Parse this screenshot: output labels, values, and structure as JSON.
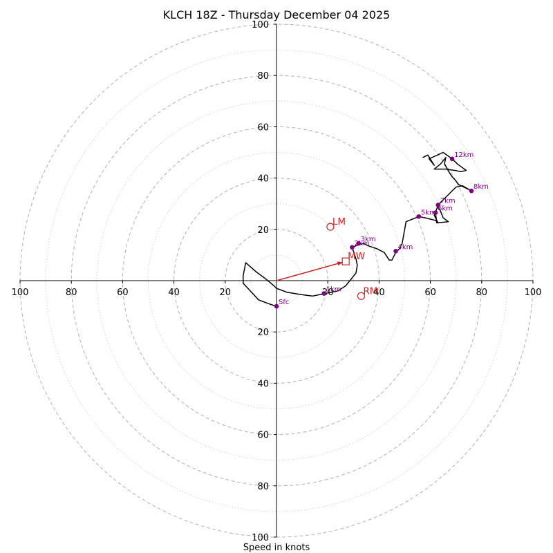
{
  "chart_data": {
    "type": "hodograph",
    "title": "KLCH 18Z - Thursday December 04 2025",
    "xlabel": "Speed in knots",
    "max_speed": 100,
    "rings_major": [
      20,
      40,
      60,
      80,
      100
    ],
    "rings_minor": [
      10,
      30,
      50,
      70,
      90
    ],
    "tick_labels": {
      "x_negative": [
        "100",
        "80",
        "60",
        "40",
        "20"
      ],
      "x_positive": [
        "20",
        "40",
        "60",
        "80",
        "100"
      ],
      "y_positive": [
        "20",
        "40",
        "60",
        "80",
        "100"
      ],
      "y_negative": [
        "20",
        "40",
        "60",
        "80",
        "100"
      ]
    },
    "colors": {
      "trace": "#000000",
      "height_markers": "#800080",
      "storm_motion": "#cc2222",
      "grid": "#b0b0b0"
    },
    "trace": [
      [
        0,
        -10
      ],
      [
        -3,
        -9
      ],
      [
        -7,
        -7.5
      ],
      [
        -13,
        -1
      ],
      [
        -13,
        2
      ],
      [
        -12,
        7
      ],
      [
        -8,
        3.5
      ],
      [
        -4,
        0.5
      ],
      [
        -1,
        -2
      ],
      [
        0,
        -3
      ],
      [
        4,
        -4.5
      ],
      [
        10,
        -5.5
      ],
      [
        14,
        -6
      ],
      [
        19,
        -5
      ],
      [
        24,
        -4
      ],
      [
        27,
        -2
      ],
      [
        31,
        3
      ],
      [
        31.5,
        6
      ],
      [
        31,
        8.5
      ],
      [
        29.5,
        13
      ],
      [
        32,
        14
      ],
      [
        34,
        14.5
      ],
      [
        36,
        13.5
      ],
      [
        39,
        12.5
      ],
      [
        42,
        11
      ],
      [
        44,
        8
      ],
      [
        45,
        8
      ],
      [
        46.5,
        11
      ],
      [
        48,
        12.5
      ],
      [
        49,
        14.5
      ],
      [
        50.5,
        23
      ],
      [
        55.5,
        25
      ],
      [
        58,
        24.5
      ],
      [
        60,
        24
      ],
      [
        62,
        23.5
      ],
      [
        63,
        22.5
      ],
      [
        61.5,
        25.5
      ],
      [
        62.5,
        28
      ],
      [
        63,
        29
      ],
      [
        64,
        27
      ],
      [
        65,
        24.5
      ],
      [
        67,
        23
      ],
      [
        62.5,
        22.5
      ],
      [
        62,
        26.5
      ],
      [
        63,
        29.5
      ],
      [
        64,
        30.5
      ],
      [
        66,
        32.5
      ],
      [
        68.5,
        35
      ],
      [
        70,
        36.5
      ],
      [
        72.5,
        37
      ],
      [
        76,
        35
      ],
      [
        71,
        37.5
      ],
      [
        69.5,
        39.5
      ],
      [
        68.5,
        40.5
      ],
      [
        67.5,
        42
      ],
      [
        65.5,
        45.5
      ],
      [
        66,
        48
      ],
      [
        64,
        45.5
      ],
      [
        61.5,
        43.5
      ],
      [
        66,
        43.5
      ],
      [
        69.5,
        43
      ],
      [
        72,
        42.5
      ],
      [
        74,
        43
      ],
      [
        70.5,
        45.5
      ],
      [
        68.5,
        47.5
      ],
      [
        65,
        50
      ],
      [
        59.5,
        47.5
      ],
      [
        61.5,
        45
      ],
      [
        59,
        49
      ],
      [
        57,
        48
      ]
    ],
    "height_markers": [
      {
        "label": "Sfc",
        "u": 0,
        "v": -10
      },
      {
        "label": "1km",
        "u": 18.5,
        "v": -5
      },
      {
        "label": "2km",
        "u": 29.5,
        "v": 13
      },
      {
        "label": "3km",
        "u": 32,
        "v": 14.5
      },
      {
        "label": "4km",
        "u": 46.5,
        "v": 11.5
      },
      {
        "label": "5km",
        "u": 55.5,
        "v": 25
      },
      {
        "label": "6km",
        "u": 62,
        "v": 26.5
      },
      {
        "label": "7km",
        "u": 63,
        "v": 29.5
      },
      {
        "label": "8km",
        "u": 76,
        "v": 35
      },
      {
        "label": "12km",
        "u": 68.5,
        "v": 47.5
      }
    ],
    "storm_motion": {
      "LM": {
        "label": "LM",
        "u": 21,
        "v": 21
      },
      "MW": {
        "label": "MW",
        "u": 27,
        "v": 7.5
      },
      "RM": {
        "label": "RM",
        "u": 33,
        "v": -6
      }
    }
  }
}
